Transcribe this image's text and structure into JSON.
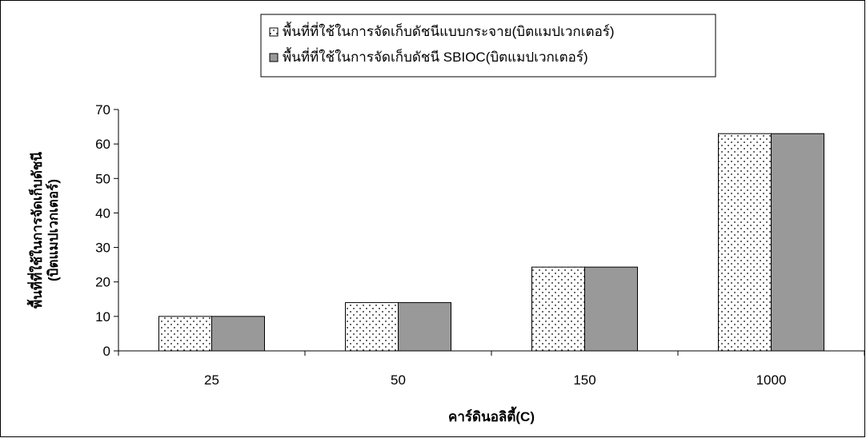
{
  "chart_data": {
    "type": "bar",
    "categories": [
      "25",
      "50",
      "150",
      "1000"
    ],
    "series": [
      {
        "name": "พื้นที่ที่ใช้ในการจัดเก็บดัชนีแบบกระจาย(บิตแมปเวกเตอร์)",
        "values": [
          10,
          14,
          24.3,
          63
        ],
        "color": "#ffffff",
        "pattern": "dotted"
      },
      {
        "name": "พื้นที่ที่ใช้ในการจัดเก็บดัชนี SBIOC(บิตแมปเวกเตอร์)",
        "values": [
          10,
          14,
          24.3,
          63
        ],
        "color": "#999999",
        "pattern": "solid"
      }
    ],
    "xlabel": "คาร์ดินอลิตี้(C)",
    "ylabel_lines": [
      "พื้นที่ที่ใช้ในการจัดเก็บดัชนี",
      "(บิตแมปเวกเตอร์)"
    ],
    "ylim": [
      0,
      70
    ],
    "yticks": [
      "0",
      "10",
      "20",
      "30",
      "40",
      "50",
      "60",
      "70"
    ],
    "grid": false,
    "legend_position": "top"
  }
}
